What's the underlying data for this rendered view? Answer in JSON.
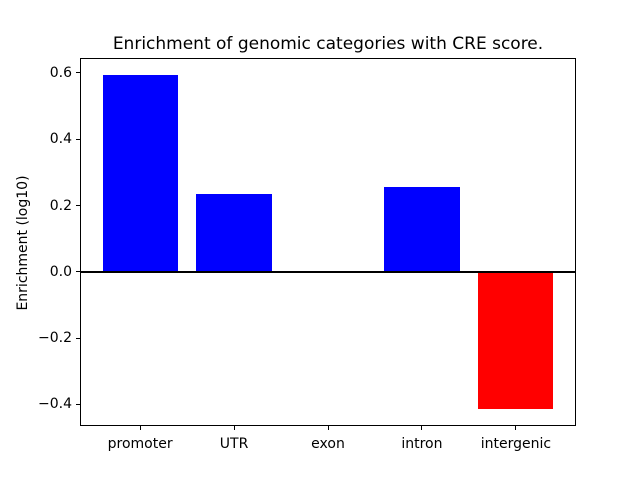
{
  "figure": {
    "background_color": "#ffffff",
    "text_color": "#000000"
  },
  "chart_data": {
    "type": "bar",
    "title": "Enrichment of genomic categories with CRE score.",
    "xlabel": "",
    "ylabel": "Enrichment (log10)",
    "categories": [
      "promoter",
      "UTR",
      "exon",
      "intron",
      "intergenic"
    ],
    "values": [
      0.595,
      0.236,
      0.0,
      0.255,
      -0.413
    ],
    "bar_colors": [
      "#0000ff",
      "#0000ff",
      "#0000ff",
      "#0000ff",
      "#ff0000"
    ],
    "positive_color": "#0000ff",
    "negative_color": "#ff0000",
    "bar_width": 0.8,
    "xlim": [
      -0.64,
      4.64
    ],
    "ylim": [
      -0.465,
      0.645
    ],
    "yticks": [
      0.6,
      0.4,
      0.2,
      0.0,
      -0.2,
      -0.4
    ],
    "ytick_labels": [
      "0.6",
      "0.4",
      "0.2",
      "0.0",
      "−0.2",
      "−0.4"
    ],
    "zero_line": {
      "y": 0.0,
      "color": "#000000",
      "thickness_px": 2
    },
    "grid": false,
    "legend": null,
    "spine_color": "#000000"
  }
}
